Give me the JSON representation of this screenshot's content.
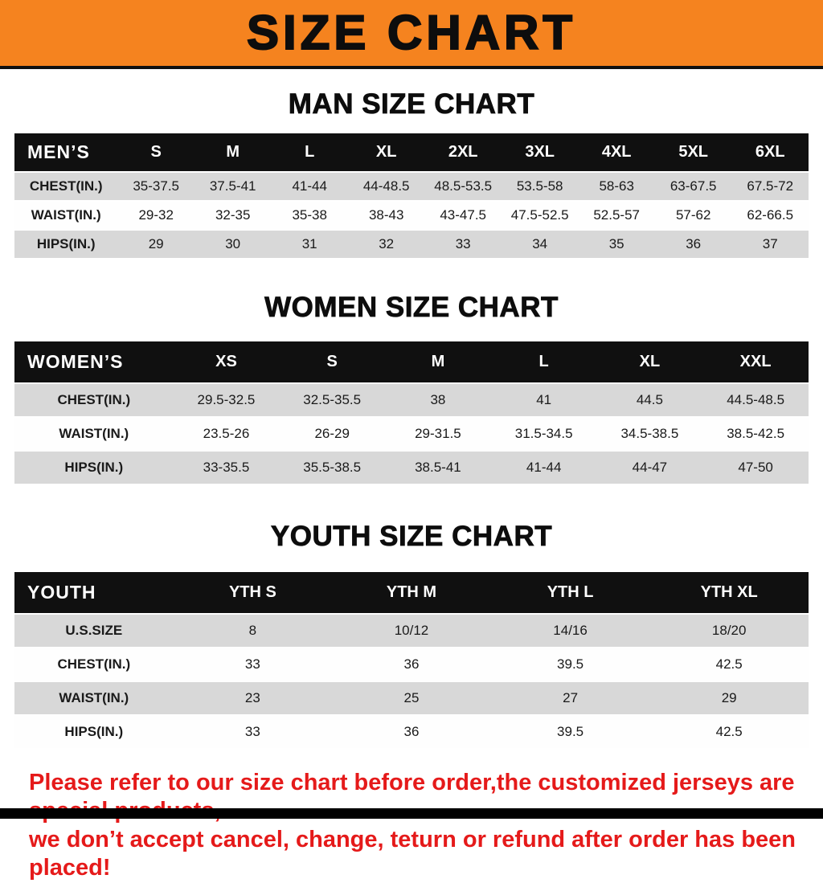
{
  "banner": {
    "title": "SIZE CHART"
  },
  "colors": {
    "banner_bg": "#f5831f",
    "table_header_bg": "#101010",
    "row_alt_gray": "#d8d8d8",
    "warning_red": "#e51a1a"
  },
  "sections": [
    {
      "title": "MAN SIZE CHART"
    },
    {
      "title": "WOMEN SIZE CHART"
    },
    {
      "title": "YOUTH SIZE CHART"
    }
  ],
  "chart_data": [
    {
      "type": "table",
      "title": "MAN SIZE CHART",
      "columns": [
        "MEN’S",
        "S",
        "M",
        "L",
        "XL",
        "2XL",
        "3XL",
        "4XL",
        "5XL",
        "6XL"
      ],
      "rows": [
        [
          "CHEST(IN.)",
          "35-37.5",
          "37.5-41",
          "41-44",
          "44-48.5",
          "48.5-53.5",
          "53.5-58",
          "58-63",
          "63-67.5",
          "67.5-72"
        ],
        [
          "WAIST(IN.)",
          "29-32",
          "32-35",
          "35-38",
          "38-43",
          "43-47.5",
          "47.5-52.5",
          "52.5-57",
          "57-62",
          "62-66.5"
        ],
        [
          "HIPS(IN.)",
          "29",
          "30",
          "31",
          "32",
          "33",
          "34",
          "35",
          "36",
          "37"
        ]
      ]
    },
    {
      "type": "table",
      "title": "WOMEN SIZE CHART",
      "columns": [
        "WOMEN’S",
        "XS",
        "S",
        "M",
        "L",
        "XL",
        "XXL"
      ],
      "rows": [
        [
          "CHEST(IN.)",
          "29.5-32.5",
          "32.5-35.5",
          "38",
          "41",
          "44.5",
          "44.5-48.5"
        ],
        [
          "WAIST(IN.)",
          "23.5-26",
          "26-29",
          "29-31.5",
          "31.5-34.5",
          "34.5-38.5",
          "38.5-42.5"
        ],
        [
          "HIPS(IN.)",
          "33-35.5",
          "35.5-38.5",
          "38.5-41",
          "41-44",
          "44-47",
          "47-50"
        ]
      ]
    },
    {
      "type": "table",
      "title": "YOUTH SIZE CHART",
      "columns": [
        "YOUTH",
        "YTH S",
        "YTH M",
        "YTH L",
        "YTH XL"
      ],
      "rows": [
        [
          "U.S.SIZE",
          "8",
          "10/12",
          "14/16",
          "18/20"
        ],
        [
          "CHEST(IN.)",
          "33",
          "36",
          "39.5",
          "42.5"
        ],
        [
          "WAIST(IN.)",
          "23",
          "25",
          "27",
          "29"
        ],
        [
          "HIPS(IN.)",
          "33",
          "36",
          "39.5",
          "42.5"
        ]
      ]
    }
  ],
  "footer": {
    "lines": [
      "Please refer to our size chart before order,the customized jerseys are special products,",
      "we don’t accept cancel, change, teturn or refund after order has been placed!"
    ]
  }
}
